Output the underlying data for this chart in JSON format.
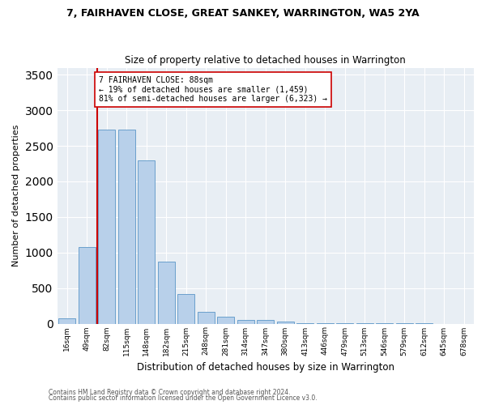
{
  "title": "7, FAIRHAVEN CLOSE, GREAT SANKEY, WARRINGTON, WA5 2YA",
  "subtitle": "Size of property relative to detached houses in Warrington",
  "xlabel": "Distribution of detached houses by size in Warrington",
  "ylabel": "Number of detached properties",
  "categories": [
    "16sqm",
    "49sqm",
    "82sqm",
    "115sqm",
    "148sqm",
    "182sqm",
    "215sqm",
    "248sqm",
    "281sqm",
    "314sqm",
    "347sqm",
    "380sqm",
    "413sqm",
    "446sqm",
    "479sqm",
    "513sqm",
    "546sqm",
    "579sqm",
    "612sqm",
    "645sqm",
    "678sqm"
  ],
  "values": [
    70,
    1080,
    2730,
    2730,
    2300,
    870,
    420,
    160,
    95,
    55,
    50,
    30,
    10,
    5,
    2,
    2,
    1,
    1,
    1,
    0,
    0
  ],
  "bar_color": "#b8d0ea",
  "bar_edge_color": "#6aa0cc",
  "property_line_color": "#cc0000",
  "annotation_text": "7 FAIRHAVEN CLOSE: 88sqm\n← 19% of detached houses are smaller (1,459)\n81% of semi-detached houses are larger (6,323) →",
  "annotation_box_color": "#ffffff",
  "annotation_box_edge": "#cc0000",
  "ylim": [
    0,
    3600
  ],
  "yticks": [
    0,
    500,
    1000,
    1500,
    2000,
    2500,
    3000,
    3500
  ],
  "bg_color": "#e8eef4",
  "footer1": "Contains HM Land Registry data © Crown copyright and database right 2024.",
  "footer2": "Contains public sector information licensed under the Open Government Licence v3.0."
}
